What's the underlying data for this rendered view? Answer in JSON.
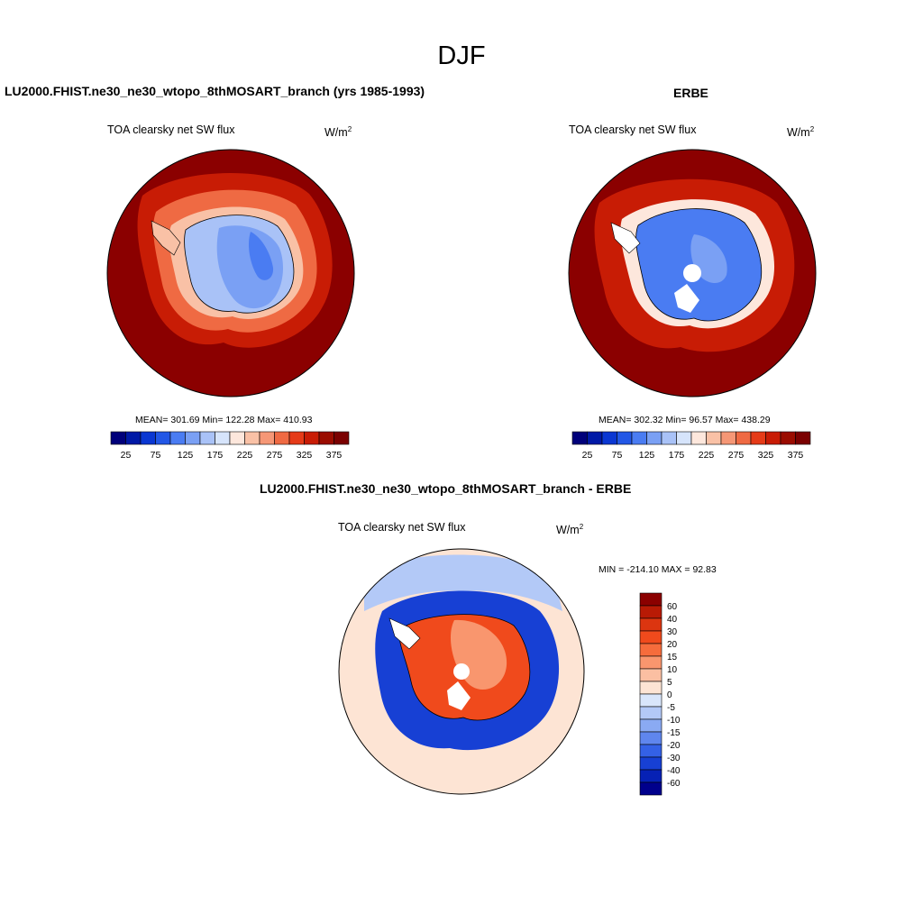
{
  "page": {
    "title": "DJF"
  },
  "panels": {
    "model": {
      "title": "LU2000.FHIST.ne30_ne30_wtopo_8thMOSART_branch (yrs 1985-1993)",
      "subtitle": "TOA clearsky net SW flux",
      "units": "W/m",
      "units_sup": "2",
      "stats": "MEAN= 301.69  Min= 122.28  Max= 410.93"
    },
    "obs": {
      "title": "ERBE",
      "subtitle": "TOA clearsky net SW flux",
      "units": "W/m",
      "units_sup": "2",
      "stats": "MEAN= 302.32  Min=  96.57  Max= 438.29"
    },
    "diff": {
      "title": "LU2000.FHIST.ne30_ne30_wtopo_8thMOSART_branch - ERBE",
      "subtitle": "TOA clearsky net SW flux",
      "units": "W/m",
      "units_sup": "2",
      "stats": "MIN = -214.10 MAX =  92.83"
    }
  },
  "chart_data": [
    {
      "type": "heatmap",
      "projection": "south polar stereographic",
      "title": "LU2000.FHIST.ne30_ne30_wtopo_8thMOSART_branch (yrs 1985-1993)",
      "field": "TOA clearsky net SW flux",
      "units": "W/m2",
      "colorbar": {
        "orientation": "horizontal",
        "levels": [
          25,
          50,
          75,
          100,
          125,
          150,
          175,
          200,
          225,
          250,
          275,
          300,
          325,
          350,
          375
        ],
        "tick_labels": [
          "25",
          "75",
          "125",
          "175",
          "225",
          "275",
          "325",
          "375"
        ],
        "colors": [
          "#00007a",
          "#0019a6",
          "#0a37d2",
          "#2257e6",
          "#4a7cf2",
          "#7aa0f4",
          "#a9c2f7",
          "#d6e4fb",
          "#fde7dc",
          "#f9c1a6",
          "#f59776",
          "#ef6a43",
          "#e53b18",
          "#c81c05",
          "#9a0c00",
          "#7a0000"
        ]
      },
      "stats": {
        "mean": 301.69,
        "min": 122.28,
        "max": 410.93
      }
    },
    {
      "type": "heatmap",
      "projection": "south polar stereographic",
      "title": "ERBE",
      "field": "TOA clearsky net SW flux",
      "units": "W/m2",
      "colorbar": {
        "orientation": "horizontal",
        "levels": [
          25,
          50,
          75,
          100,
          125,
          150,
          175,
          200,
          225,
          250,
          275,
          300,
          325,
          350,
          375
        ],
        "tick_labels": [
          "25",
          "75",
          "125",
          "175",
          "225",
          "275",
          "325",
          "375"
        ],
        "colors": [
          "#00007a",
          "#0019a6",
          "#0a37d2",
          "#2257e6",
          "#4a7cf2",
          "#7aa0f4",
          "#a9c2f7",
          "#d6e4fb",
          "#fde7dc",
          "#f9c1a6",
          "#f59776",
          "#ef6a43",
          "#e53b18",
          "#c81c05",
          "#9a0c00",
          "#7a0000"
        ]
      },
      "stats": {
        "mean": 302.32,
        "min": 96.57,
        "max": 438.29
      }
    },
    {
      "type": "heatmap",
      "projection": "south polar stereographic",
      "title": "LU2000.FHIST.ne30_ne30_wtopo_8thMOSART_branch - ERBE",
      "field": "TOA clearsky net SW flux",
      "units": "W/m2",
      "colorbar": {
        "orientation": "vertical",
        "levels": [
          60,
          40,
          30,
          20,
          15,
          10,
          5,
          0,
          -5,
          -10,
          -15,
          -20,
          -30,
          -40,
          -60
        ],
        "tick_labels": [
          "60",
          "40",
          "30",
          "20",
          "15",
          "10",
          "5",
          "0",
          "-5",
          "-10",
          "-15",
          "-20",
          "-30",
          "-40",
          "-60"
        ],
        "colors": [
          "#8b0000",
          "#b81a05",
          "#dc3510",
          "#f04a1c",
          "#f66c3c",
          "#f9966e",
          "#fbbfa2",
          "#fde4d4",
          "#d9e6fb",
          "#b3c9f7",
          "#8aaaf3",
          "#5f86ee",
          "#3461e6",
          "#1740d4",
          "#0621b5",
          "#00008c"
        ]
      },
      "stats": {
        "min": -214.1,
        "max": 92.83
      }
    }
  ]
}
